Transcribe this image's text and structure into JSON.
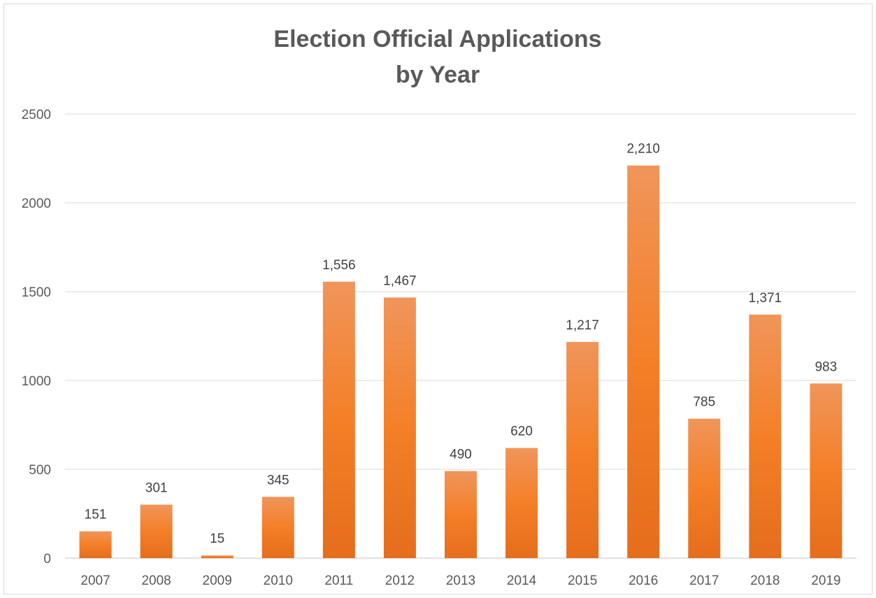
{
  "chart_data": {
    "type": "bar",
    "title": "Election Official Applications",
    "subtitle": "by Year",
    "categories": [
      "2007",
      "2008",
      "2009",
      "2010",
      "2011",
      "2012",
      "2013",
      "2014",
      "2015",
      "2016",
      "2017",
      "2018",
      "2019"
    ],
    "values": [
      151,
      301,
      15,
      345,
      1556,
      1467,
      490,
      620,
      1217,
      2210,
      785,
      1371,
      983
    ],
    "data_labels": [
      "151",
      "301",
      "15",
      "345",
      "1,556",
      "1,467",
      "490",
      "620",
      "1,217",
      "2,210",
      "785",
      "1,371",
      "983"
    ],
    "y_ticks": [
      "0",
      "500",
      "1000",
      "1500",
      "2000",
      "2500"
    ],
    "ylim": [
      0,
      2500
    ],
    "xlabel": "",
    "ylabel": "",
    "grid": true,
    "legend": "none",
    "colors": {
      "bar_top": "#f0955a",
      "bar_mid": "#f47f27",
      "bar_bottom": "#e56d1c",
      "grid": "#d9d9d9",
      "text": "#595959"
    }
  }
}
